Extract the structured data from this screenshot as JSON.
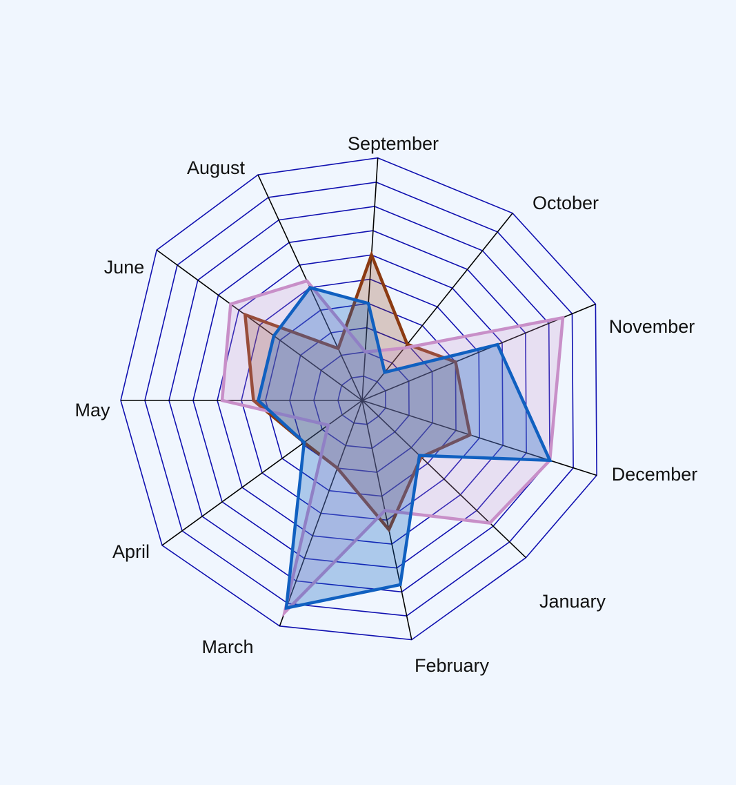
{
  "chart_data": {
    "type": "radar",
    "title": "",
    "categories": [
      "September",
      "October",
      "November",
      "December",
      "January",
      "February",
      "March",
      "April",
      "May",
      "June",
      "August"
    ],
    "scale": {
      "min": 0,
      "max": 10,
      "grid_rings": 10,
      "irregular_spokes": true
    },
    "grid": true,
    "legend": "none",
    "series": [
      {
        "color": "#8b3a12",
        "fill_opacity": 0.25,
        "values": [
          6.0,
          3.0,
          4.0,
          4.6,
          3.6,
          5.4,
          3.0,
          2.9,
          4.5,
          5.7,
          2.3
        ]
      },
      {
        "color": "#c88fc8",
        "fill_opacity": 0.22,
        "values": [
          2.0,
          2.8,
          8.6,
          8.0,
          7.8,
          4.6,
          9.4,
          1.7,
          5.8,
          6.4,
          5.3
        ]
      },
      {
        "color": "#1060c0",
        "fill_opacity": 0.3,
        "values": [
          4.0,
          1.5,
          5.8,
          8.0,
          3.5,
          7.7,
          9.2,
          2.9,
          4.3,
          4.3,
          5.0
        ]
      }
    ],
    "colors": {
      "grid_ring": "#1010b0",
      "spoke": "#000000",
      "label": "#111111"
    }
  }
}
